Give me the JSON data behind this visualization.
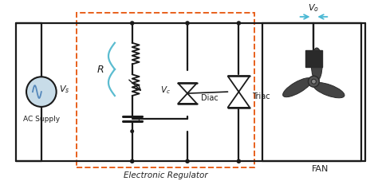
{
  "bg_color": "#ffffff",
  "line_color": "#1a1a1a",
  "dashed_box_color": "#e8601c",
  "blue_brace_color": "#5bbcd0",
  "ac_supply_face": "#c8dce8",
  "ac_supply_sine": "#5588bb",
  "arrow_color": "#4ab8d4",
  "fan_dark": "#2a2a2a",
  "fan_mid": "#444444",
  "fan_hub": "#555555",
  "label_color": "#222222",
  "electronic_regulator_label": "Electronic Regulator",
  "ac_supply_label": "AC Supply",
  "vs_label": "$V_s$",
  "R_label": "R",
  "Vc_label": "$V_c$",
  "C_label": "C",
  "Diac_label": "Diac",
  "Triac_label": "Triac",
  "Vo_label": "$V_o$",
  "FAN_label": "FAN"
}
